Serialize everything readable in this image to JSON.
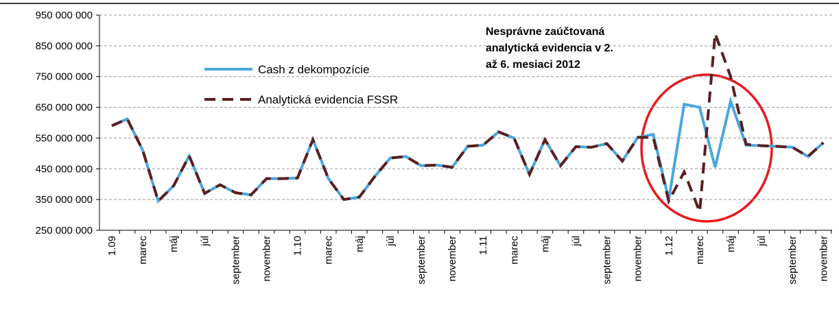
{
  "chart_data": {
    "type": "line",
    "annotation": [
      "Nesprávne zaúčtovaná",
      "analytická evidencia v 2.",
      "až 6. mesiaci 2012"
    ],
    "categories": [
      "1.09",
      null,
      "marec",
      null,
      "máj",
      null,
      "júl",
      null,
      "september",
      null,
      "november",
      null,
      "1.10",
      null,
      "marec",
      null,
      "máj",
      null,
      "júl",
      null,
      "september",
      null,
      "november",
      null,
      "1.11",
      null,
      "marec",
      null,
      "máj",
      null,
      "júl",
      null,
      "september",
      null,
      "november",
      null,
      "1.12",
      null,
      "marec",
      null,
      "máj",
      null,
      "júl",
      null,
      "september",
      null,
      "november"
    ],
    "series": [
      {
        "name": "Cash z dekompozície",
        "color": "#4aa6de",
        "dash": false,
        "values": [
          590000000,
          612000000,
          510000000,
          345000000,
          395000000,
          492000000,
          370000000,
          398000000,
          372000000,
          365000000,
          418000000,
          418000000,
          420000000,
          545000000,
          418000000,
          350000000,
          358000000,
          425000000,
          485000000,
          490000000,
          460000000,
          462000000,
          455000000,
          523000000,
          527000000,
          570000000,
          550000000,
          432000000,
          545000000,
          460000000,
          522000000,
          520000000,
          532000000,
          475000000,
          552000000,
          562000000,
          350000000,
          660000000,
          650000000,
          455000000,
          670000000,
          527000000,
          525000000,
          523000000,
          520000000,
          490000000,
          535000000
        ]
      },
      {
        "name": "Analytická evidencia FSSR",
        "color": "#5a1e1e",
        "dash": true,
        "values": [
          590000000,
          612000000,
          510000000,
          345000000,
          395000000,
          492000000,
          370000000,
          398000000,
          372000000,
          365000000,
          418000000,
          418000000,
          420000000,
          545000000,
          418000000,
          350000000,
          358000000,
          425000000,
          485000000,
          490000000,
          460000000,
          462000000,
          455000000,
          523000000,
          527000000,
          570000000,
          550000000,
          432000000,
          545000000,
          460000000,
          522000000,
          520000000,
          532000000,
          475000000,
          552000000,
          552000000,
          345000000,
          440000000,
          310000000,
          890000000,
          750000000,
          530000000,
          525000000,
          523000000,
          520000000,
          490000000,
          535000000
        ]
      }
    ],
    "ylim": [
      250000000,
      950000000
    ],
    "yticks": [
      {
        "value": 250000000,
        "label": "250 000 000"
      },
      {
        "value": 350000000,
        "label": "350 000 000"
      },
      {
        "value": 450000000,
        "label": "450 000 000"
      },
      {
        "value": 550000000,
        "label": "550 000 000"
      },
      {
        "value": 650000000,
        "label": "650 000 000"
      },
      {
        "value": 750000000,
        "label": "750 000 000"
      },
      {
        "value": 850000000,
        "label": "850 000 000"
      },
      {
        "value": 950000000,
        "label": "950 000 000"
      }
    ],
    "grid": true
  }
}
